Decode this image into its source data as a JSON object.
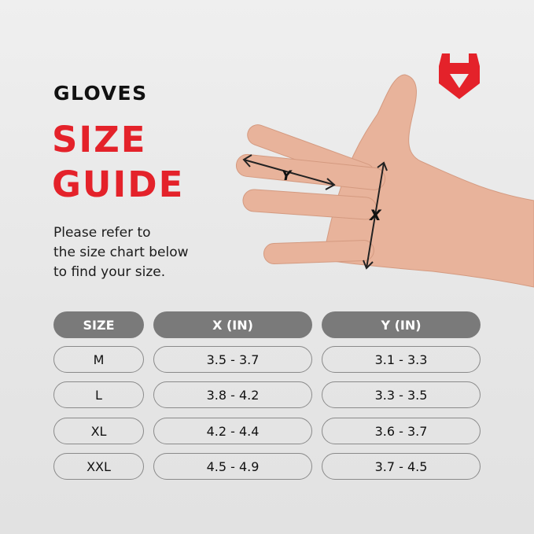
{
  "heading": {
    "kicker": "GLOVES",
    "title_line1": "SIZE",
    "title_line2": "GUIDE"
  },
  "description": [
    "Please refer to",
    "the size chart below",
    "to find your size."
  ],
  "brand": {
    "logo_icon": "red-shield-horns-logo",
    "color": "#e4222a"
  },
  "figure": {
    "x_label": "X",
    "y_label": "Y"
  },
  "table": {
    "headers": [
      "SIZE",
      "X (IN)",
      "Y (IN)"
    ],
    "rows": [
      [
        "M",
        "3.5 - 3.7",
        "3.1 - 3.3"
      ],
      [
        "L",
        "3.8 - 4.2",
        "3.3 - 3.5"
      ],
      [
        "XL",
        "4.2 - 4.4",
        "3.6 - 3.7"
      ],
      [
        "XXL",
        "4.5 - 4.9",
        "3.7 - 4.5"
      ]
    ]
  }
}
